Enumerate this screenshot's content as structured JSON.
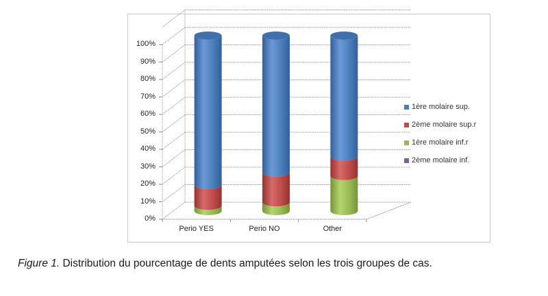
{
  "caption": {
    "prefix": "Figure 1.",
    "text": " Distribution du pourcentage de dents amputées selon les trois groupes de cas."
  },
  "colors": {
    "blue": "#4a7ebb",
    "red": "#be4b48",
    "green": "#98b954",
    "purple": "#7d60a0"
  },
  "chart_data": {
    "type": "bar",
    "subtype": "3d-stacked-cylinder-100pct",
    "title": "",
    "xlabel": "",
    "ylabel": "",
    "ylim": [
      0,
      100
    ],
    "yticks": [
      "0%",
      "10%",
      "20%",
      "30%",
      "40%",
      "50%",
      "60%",
      "70%",
      "80%",
      "90%",
      "100%"
    ],
    "categories": [
      "Perio YES",
      "Perio NO",
      "Other"
    ],
    "series": [
      {
        "name": "1ère molaire sup.",
        "color": "#4a7ebb",
        "values": [
          85,
          78,
          69
        ]
      },
      {
        "name": "2ème molaire sup.r",
        "color": "#be4b48",
        "values": [
          12,
          17,
          11
        ]
      },
      {
        "name": "1ère molaire inf.r",
        "color": "#98b954",
        "values": [
          3,
          5,
          20
        ]
      },
      {
        "name": "2ème molaire inf.",
        "color": "#7d60a0",
        "values": [
          0,
          0,
          0
        ]
      }
    ],
    "stack_order_bottom_to_top": [
      "1ère molaire inf.r",
      "2ème molaire sup.r",
      "1ère molaire sup.",
      "2ème molaire inf."
    ],
    "legend_position": "right",
    "grid": true
  }
}
